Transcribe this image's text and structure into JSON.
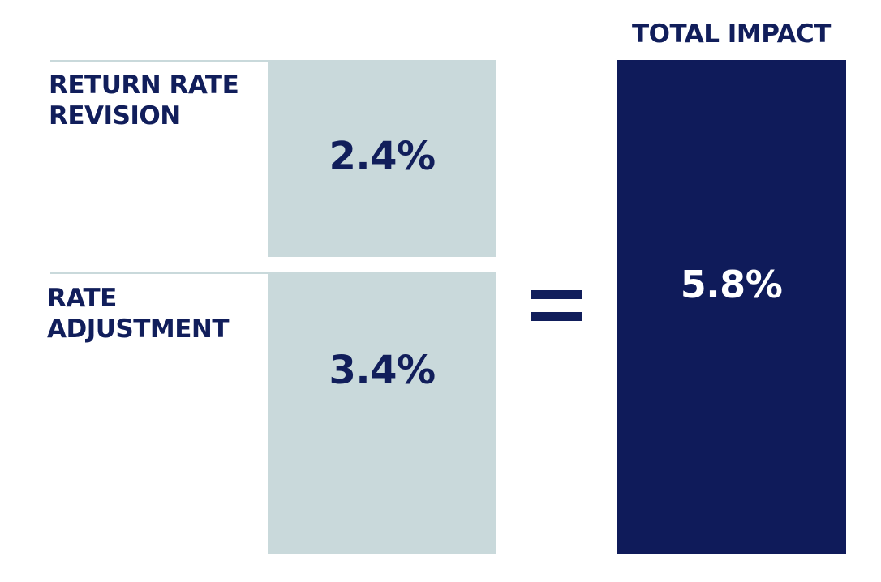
{
  "components": [
    {
      "label_lines": [
        "RETURN RATE",
        "REVISION"
      ],
      "value": "2.4%"
    },
    {
      "label_lines": [
        "RATE",
        "ADJUSTMENT"
      ],
      "value": "3.4%"
    }
  ],
  "operator": "=",
  "total": {
    "title": "TOTAL IMPACT",
    "value": "5.8%"
  },
  "colors": {
    "navy": "#0f1b5a",
    "text_navy": "#111e5b",
    "light_teal_gray": "#c9d9db",
    "background": "#ffffff"
  }
}
